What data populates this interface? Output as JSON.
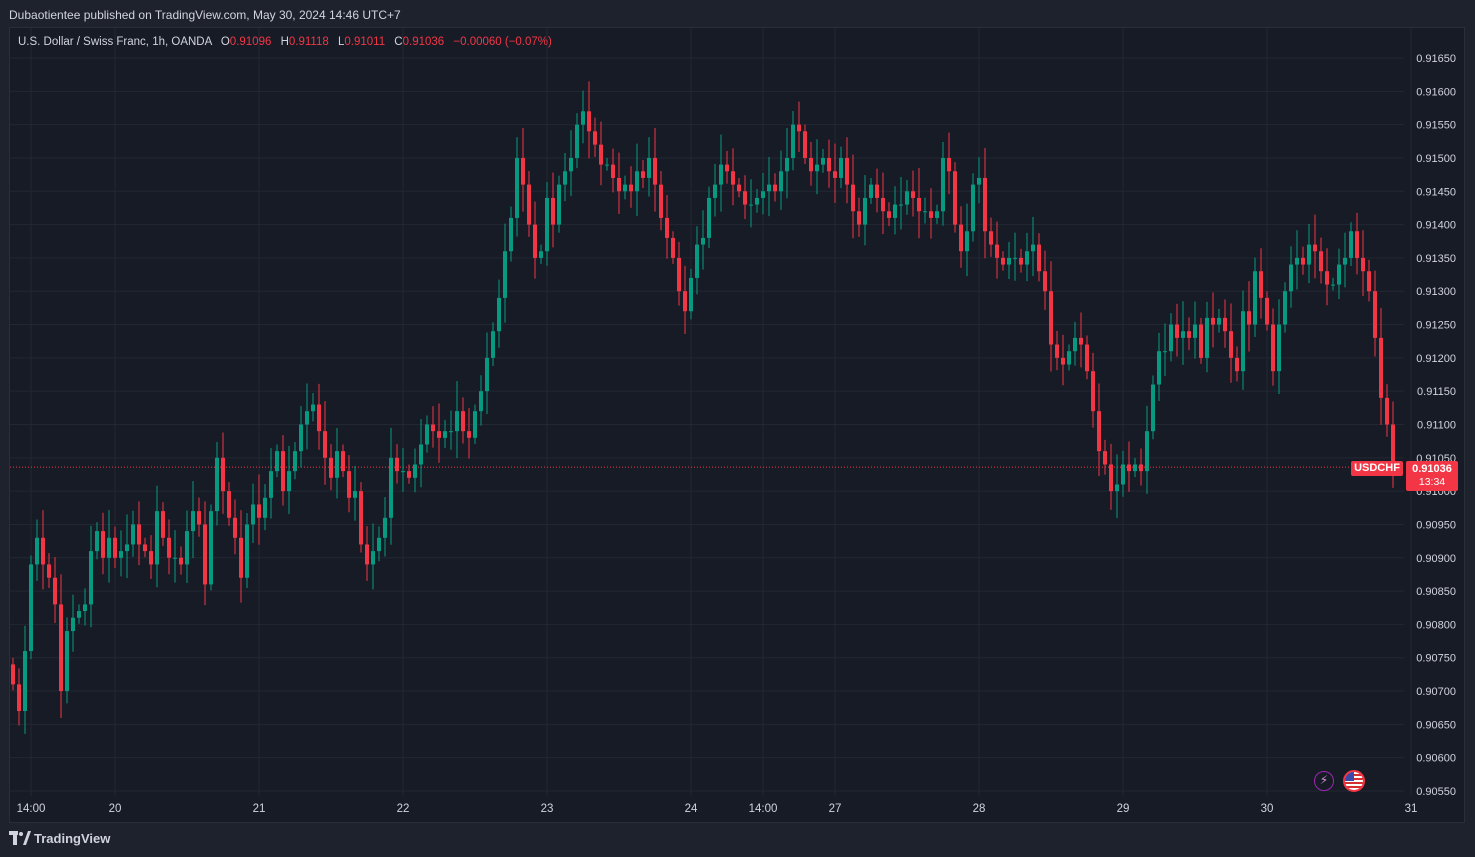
{
  "header": {
    "publisher_line": "Dubaotientee published on TradingView.com, May 30, 2024 14:46 UTC+7"
  },
  "legend": {
    "title": "U.S. Dollar / Swiss Franc, 1h, OANDA",
    "o_label": "O",
    "o_value": "0.91096",
    "h_label": "H",
    "h_value": "0.91118",
    "l_label": "L",
    "l_value": "0.91011",
    "c_label": "C",
    "c_value": "0.91036",
    "change": "−0.00060 (−0.07%)"
  },
  "price_marker": {
    "symbol": "USDCHF",
    "price": "0.91036",
    "countdown": "13:34"
  },
  "footer": {
    "brand": "TradingView"
  },
  "colors": {
    "background": "#1e222d",
    "pane": "#171b26",
    "grid": "#232733",
    "up": "#089981",
    "down": "#f23645",
    "text": "#d1d4dc"
  },
  "icons": [
    "lightning-icon",
    "us-flag-icon",
    "tradingview-logo-icon"
  ],
  "chart_data": {
    "type": "candlestick",
    "symbol": "USDCHF",
    "interval": "1h",
    "ylim": [
      0.9055,
      0.9168
    ],
    "y_ticks": [
      "0.91650",
      "0.91600",
      "0.91550",
      "0.91500",
      "0.91450",
      "0.91400",
      "0.91350",
      "0.91300",
      "0.91250",
      "0.91200",
      "0.91150",
      "0.91100",
      "0.91050",
      "0.91000",
      "0.90950",
      "0.90900",
      "0.90850",
      "0.90800",
      "0.90750",
      "0.90700",
      "0.90650",
      "0.90600",
      "0.90550"
    ],
    "x_tick_labels": [
      "14:00",
      "20",
      "21",
      "22",
      "23",
      "24",
      "14:00",
      "27",
      "28",
      "29",
      "30",
      "31"
    ],
    "x_tick_index": [
      3,
      17,
      41,
      65,
      89,
      113,
      125,
      137,
      161,
      185,
      209,
      233
    ],
    "last_price": 0.91036,
    "grid": true,
    "legend_position": "top-left",
    "close_series": [
      0.9071,
      0.9067,
      0.9076,
      0.9089,
      0.9093,
      0.9089,
      0.9087,
      0.9083,
      0.907,
      0.9079,
      0.9081,
      0.9082,
      0.9083,
      0.9091,
      0.9094,
      0.909,
      0.9093,
      0.909,
      0.9091,
      0.9092,
      0.9095,
      0.9092,
      0.9091,
      0.9089,
      0.9097,
      0.9093,
      0.909,
      0.909,
      0.9089,
      0.9094,
      0.9097,
      0.9095,
      0.9086,
      0.9097,
      0.9105,
      0.91,
      0.9096,
      0.9093,
      0.9087,
      0.9095,
      0.9098,
      0.9096,
      0.9099,
      0.9103,
      0.9106,
      0.91,
      0.9103,
      0.9106,
      0.911,
      0.9112,
      0.9113,
      0.9109,
      0.9105,
      0.9102,
      0.9106,
      0.9103,
      0.9099,
      0.91,
      0.9092,
      0.9089,
      0.9091,
      0.9093,
      0.9096,
      0.9105,
      0.9103,
      0.9103,
      0.9102,
      0.9104,
      0.9107,
      0.911,
      0.9109,
      0.9108,
      0.9109,
      0.9109,
      0.9112,
      0.9109,
      0.9108,
      0.9112,
      0.9115,
      0.912,
      0.9124,
      0.9129,
      0.9136,
      0.9141,
      0.915,
      0.9146,
      0.914,
      0.9135,
      0.9136,
      0.9144,
      0.914,
      0.9146,
      0.9148,
      0.915,
      0.9155,
      0.9157,
      0.9154,
      0.9152,
      0.9149,
      0.9149,
      0.9147,
      0.9145,
      0.9146,
      0.9145,
      0.9148,
      0.9147,
      0.915,
      0.9146,
      0.9141,
      0.9138,
      0.9135,
      0.913,
      0.9127,
      0.9132,
      0.9137,
      0.9138,
      0.9144,
      0.9146,
      0.9149,
      0.9148,
      0.9146,
      0.9145,
      0.9143,
      0.9143,
      0.9144,
      0.9145,
      0.9146,
      0.9145,
      0.9148,
      0.915,
      0.9155,
      0.9154,
      0.915,
      0.9148,
      0.9149,
      0.915,
      0.9148,
      0.9147,
      0.915,
      0.9146,
      0.9142,
      0.914,
      0.9144,
      0.9146,
      0.9144,
      0.9142,
      0.9141,
      0.9143,
      0.9143,
      0.9145,
      0.9144,
      0.9142,
      0.9142,
      0.9141,
      0.9142,
      0.915,
      0.9148,
      0.914,
      0.9136,
      0.9139,
      0.9146,
      0.9147,
      0.9139,
      0.9137,
      0.9135,
      0.9134,
      0.9135,
      0.9135,
      0.9134,
      0.9136,
      0.9137,
      0.9133,
      0.913,
      0.9122,
      0.912,
      0.9119,
      0.9121,
      0.9123,
      0.9122,
      0.9118,
      0.9112,
      0.9106,
      0.9104,
      0.91,
      0.9101,
      0.9104,
      0.9103,
      0.9104,
      0.9103,
      0.9109,
      0.9116,
      0.9121,
      0.9121,
      0.9125,
      0.9123,
      0.9124,
      0.9123,
      0.9125,
      0.912,
      0.9126,
      0.9125,
      0.9126,
      0.9124,
      0.912,
      0.9118,
      0.9127,
      0.9125,
      0.9133,
      0.9129,
      0.9125,
      0.9118,
      0.9125,
      0.913,
      0.9134,
      0.9135,
      0.9134,
      0.9137,
      0.9136,
      0.9133,
      0.9131,
      0.9131,
      0.9134,
      0.9135,
      0.9139,
      0.9135,
      0.9133,
      0.913,
      0.9123,
      0.9114,
      0.911,
      0.91036
    ]
  }
}
